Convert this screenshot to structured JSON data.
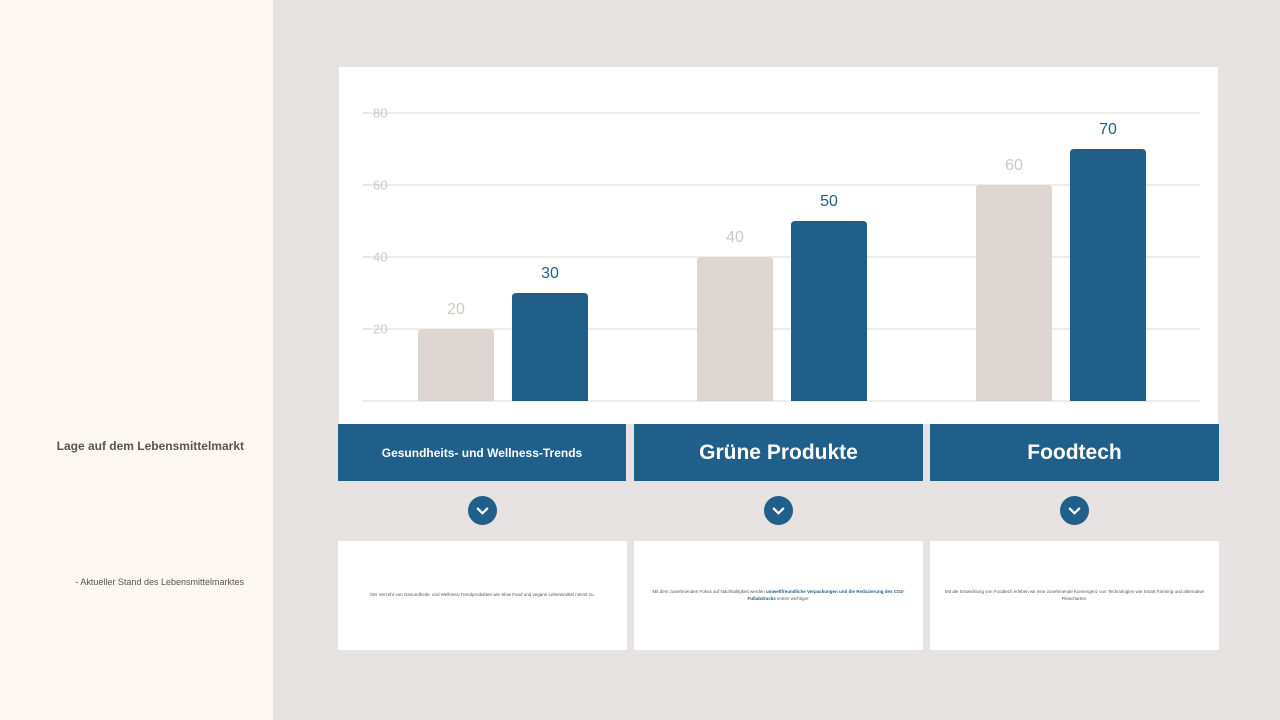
{
  "sidebar": {
    "title": "Lage auf dem Lebensmittelmarkt",
    "subtitle": "- Aktueller Stand des Lebensmittelmarktes"
  },
  "colors": {
    "accent": "#215f8b",
    "secondary": "#ddd5d1",
    "grid": "#d9d9d9",
    "light_label": "#cfc7c3"
  },
  "chart_data": {
    "type": "bar",
    "categories": [
      "Gesundheits- und Wellness-Trends",
      "Grüne Produkte",
      "Foodtech"
    ],
    "series": [
      {
        "values": [
          20,
          40,
          60
        ],
        "color": "#ddd5d1"
      },
      {
        "values": [
          30,
          50,
          70
        ],
        "color": "#215f8b"
      }
    ],
    "yticks": [
      20,
      40,
      60,
      80
    ],
    "ylim": [
      0,
      80
    ],
    "grid": true,
    "legend": "none",
    "title": "",
    "xlabel": "",
    "ylabel": ""
  },
  "categories": [
    {
      "label": "Gesundheits- und Wellness-Trends",
      "icon": "chevron-down-icon"
    },
    {
      "label": "Grüne Produkte",
      "icon": "chevron-down-icon"
    },
    {
      "label": "Foodtech",
      "icon": "chevron-down-icon"
    }
  ],
  "descriptions": [
    {
      "pre": "Der Verzehr von Gesundheits- und Wellness-Trendprodukten wie Slow Food und vegane Lebensmittel nimmt zu.",
      "highlight": "",
      "post": ""
    },
    {
      "pre": "Mit dem zunehmenden Fokus auf Nachhaltigkeit werden ",
      "highlight": "umweltfreundliche Verpackungen und die Reduzierung des CO2-Fußabdrucks",
      "post": " immer wichtiger."
    },
    {
      "pre": "Mit der Entwicklung von Foodtech erleben wir eine zunehmende Konvergenz von Technologien wie Smart Farming und alternative Fleischarten.",
      "highlight": "",
      "post": ""
    }
  ]
}
